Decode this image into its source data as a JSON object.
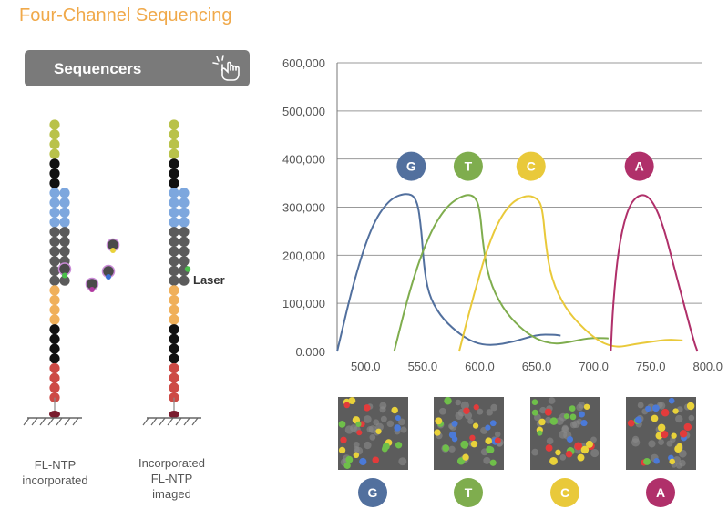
{
  "title": "Four-Channel Sequencing",
  "button": {
    "label": "Sequencers"
  },
  "strands": {
    "left_caption": [
      "FL-NTP",
      "incorporated"
    ],
    "right_caption": [
      "Incorporated",
      "FL-NTP",
      "imaged"
    ],
    "laser_label": "Laser"
  },
  "colors": {
    "G": "#52709e",
    "T": "#7fad4e",
    "C": "#e9c93a",
    "A": "#b0306a"
  },
  "chart_data": {
    "type": "line",
    "title": "",
    "xlabel": "",
    "ylabel": "",
    "xlim": [
      475,
      805
    ],
    "ylim": [
      0,
      600000
    ],
    "x_ticks": [
      "500.0",
      "550.0",
      "600.0",
      "650.0",
      "700.0",
      "750.0",
      "800.0"
    ],
    "y_ticks": [
      "0.000",
      "100,000",
      "200,000",
      "300,000",
      "400,000",
      "500,000",
      "600,000"
    ],
    "grid": true,
    "series": [
      {
        "name": "G",
        "color": "#52709e",
        "points": [
          [
            475,
            0
          ],
          [
            490,
            150000
          ],
          [
            505,
            260000
          ],
          [
            520,
            315000
          ],
          [
            535,
            330000
          ],
          [
            545,
            320000
          ],
          [
            549,
            250000
          ],
          [
            551,
            180000
          ],
          [
            555,
            120000
          ],
          [
            565,
            75000
          ],
          [
            580,
            40000
          ],
          [
            595,
            18000
          ],
          [
            610,
            12000
          ],
          [
            630,
            20000
          ],
          [
            650,
            35000
          ],
          [
            665,
            35000
          ],
          [
            671,
            33000
          ]
        ]
      },
      {
        "name": "T",
        "color": "#7fad4e",
        "points": [
          [
            525,
            0
          ],
          [
            540,
            140000
          ],
          [
            555,
            240000
          ],
          [
            570,
            300000
          ],
          [
            585,
            325000
          ],
          [
            595,
            325000
          ],
          [
            600,
            300000
          ],
          [
            603,
            220000
          ],
          [
            608,
            150000
          ],
          [
            620,
            90000
          ],
          [
            635,
            50000
          ],
          [
            650,
            25000
          ],
          [
            665,
            15000
          ],
          [
            680,
            20000
          ],
          [
            695,
            28000
          ],
          [
            710,
            28000
          ],
          [
            713,
            27000
          ]
        ]
      },
      {
        "name": "C",
        "color": "#e9c93a",
        "points": [
          [
            582,
            0
          ],
          [
            595,
            120000
          ],
          [
            610,
            240000
          ],
          [
            625,
            305000
          ],
          [
            640,
            325000
          ],
          [
            650,
            320000
          ],
          [
            655,
            300000
          ],
          [
            658,
            220000
          ],
          [
            663,
            150000
          ],
          [
            675,
            90000
          ],
          [
            690,
            50000
          ],
          [
            705,
            20000
          ],
          [
            720,
            8000
          ],
          [
            735,
            15000
          ],
          [
            750,
            20000
          ],
          [
            765,
            25000
          ],
          [
            778,
            23000
          ]
        ]
      },
      {
        "name": "A",
        "color": "#b0306a",
        "points": [
          [
            715,
            0
          ],
          [
            717,
            100000
          ],
          [
            722,
            220000
          ],
          [
            730,
            300000
          ],
          [
            740,
            328000
          ],
          [
            750,
            320000
          ],
          [
            760,
            270000
          ],
          [
            770,
            180000
          ],
          [
            780,
            90000
          ],
          [
            788,
            20000
          ],
          [
            791,
            0
          ]
        ]
      }
    ],
    "peak_labels": [
      "G",
      "T",
      "C",
      "A"
    ],
    "legend": "labels above peaks"
  },
  "images": {
    "labels": [
      "G",
      "T",
      "C",
      "A"
    ]
  }
}
